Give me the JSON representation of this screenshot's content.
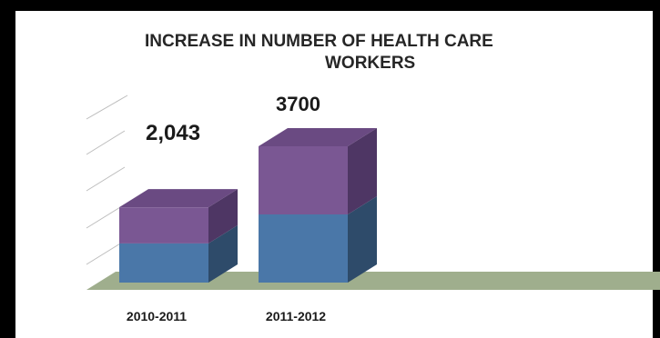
{
  "chart_data": {
    "type": "bar",
    "title_line1": "INCREASE IN NUMBER OF HEALTH CARE",
    "title_line2": "WORKERS",
    "categories": [
      "2010-2011",
      "2011-2012"
    ],
    "data_labels": [
      "2,043",
      "3700"
    ],
    "values": [
      2043,
      3700
    ],
    "stack_split": [
      0.52,
      0.5
    ],
    "colors": {
      "lower_front": "#4a77a8",
      "lower_side": "#2e4b6a",
      "upper_front": "#7a5793",
      "upper_side": "#4e3664",
      "top": "#6a4a82",
      "floor": "#9fae8d",
      "grid": "#bdbdbd"
    },
    "legend": "none",
    "grid": true
  }
}
